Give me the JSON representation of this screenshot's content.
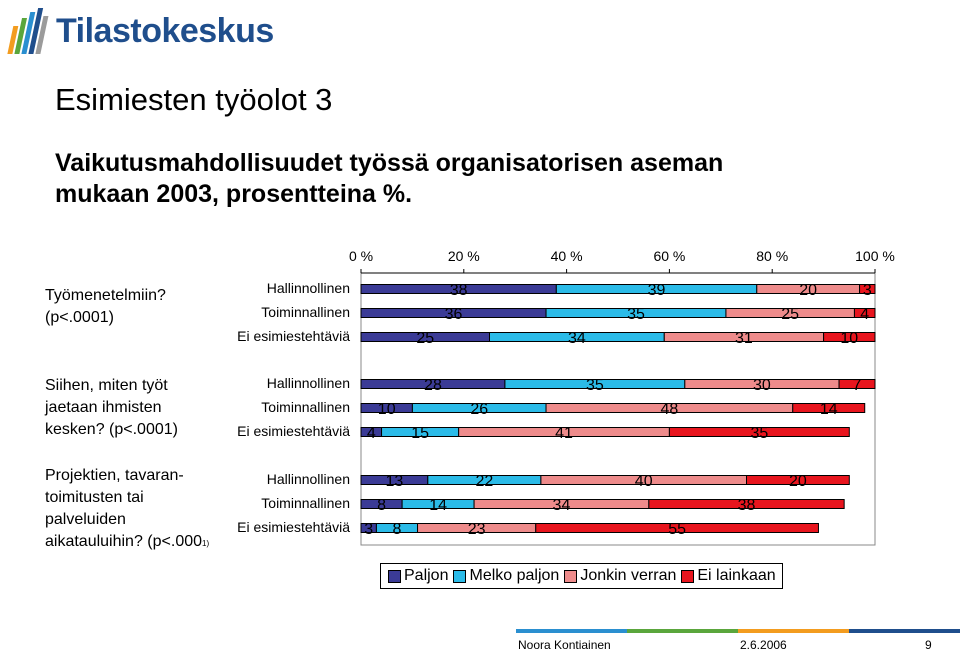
{
  "header": {
    "logo_text": "Tilastokeskus",
    "title": "Esimiesten työolot 3",
    "subtitle": "Vaikutusmahdollisuudet työssä organisatorisen aseman mukaan 2003, prosentteina %."
  },
  "footer": {
    "author": "Noora Kontiainen",
    "date": "2.6.2006",
    "page": "9"
  },
  "colors": {
    "Paljon": "#3b3b96",
    "Melko paljon": "#2bbbe8",
    "Jonkin verran": "#ee8b8b",
    "Ei lainkaan": "#e8151e"
  },
  "chart_data": {
    "type": "bar",
    "orientation": "horizontal",
    "stacked": true,
    "x_ticks": [
      "0 %",
      "20 %",
      "40 %",
      "60 %",
      "80 %",
      "100 %"
    ],
    "xlim": [
      0,
      100
    ],
    "legend_position": "bottom",
    "legend": [
      "Paljon",
      "Melko paljon",
      "Jonkin verran",
      "Ei lainkaan"
    ],
    "groups": [
      {
        "label": "Työmenetelmiin? (p<.0001)",
        "rows": [
          {
            "name": "Hallinnollinen",
            "values": [
              38,
              39,
              20,
              3
            ]
          },
          {
            "name": "Toiminnallinen",
            "values": [
              36,
              35,
              25,
              4
            ]
          },
          {
            "name": "Ei esimiestehtäviä",
            "values": [
              25,
              34,
              31,
              10
            ]
          }
        ]
      },
      {
        "label": "Siihen, miten työt jaetaan ihmisten kesken? (p<.0001)",
        "rows": [
          {
            "name": "Hallinnollinen",
            "values": [
              28,
              35,
              30,
              7
            ]
          },
          {
            "name": "Toiminnallinen",
            "values": [
              10,
              26,
              48,
              14
            ]
          },
          {
            "name": "Ei esimiestehtäviä",
            "values": [
              4,
              15,
              41,
              35
            ]
          }
        ]
      },
      {
        "label": "Projektien, tavarantoimitusten tai palveluiden aikatauluihin? (p<.0001)",
        "label_lines": [
          "Projektien, tavaran-",
          "toimitusten tai",
          "palveluiden",
          "aikatauluihin? (p<.000"
        ],
        "label_suffix": "1)",
        "rows": [
          {
            "name": "Hallinnollinen",
            "values": [
              13,
              22,
              40,
              20
            ]
          },
          {
            "name": "Toiminnallinen",
            "values": [
              8,
              14,
              34,
              38
            ]
          },
          {
            "name": "Ei esimiestehtäviä",
            "values": [
              3,
              8,
              23,
              55
            ]
          }
        ]
      }
    ]
  }
}
